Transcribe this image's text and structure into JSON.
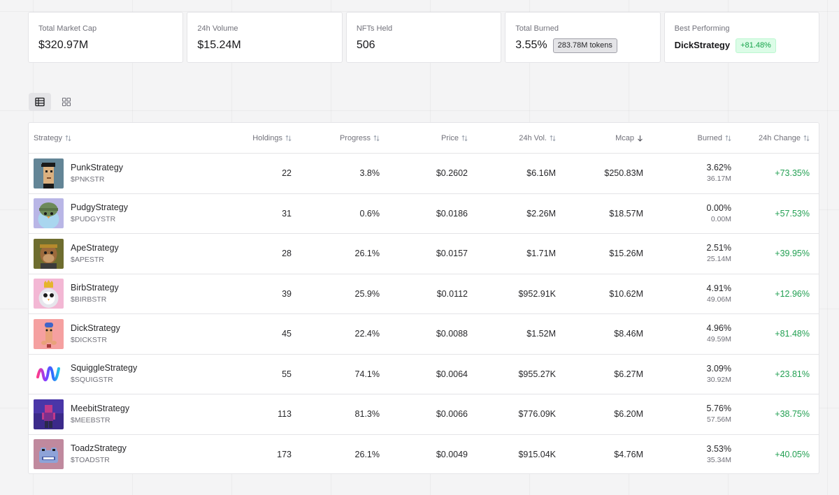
{
  "stats": [
    {
      "label": "Total Market Cap",
      "value": "$320.97M"
    },
    {
      "label": "24h Volume",
      "value": "$15.24M"
    },
    {
      "label": "NFTs Held",
      "value": "506"
    },
    {
      "label": "Total Burned",
      "value": "3.55%",
      "badge": "283.78M tokens"
    },
    {
      "label": "Best Performing",
      "value": "DickStrategy",
      "badge": "+81.48%"
    }
  ],
  "view_toggle": {
    "active": "table",
    "options": [
      "table-view",
      "grid-view"
    ]
  },
  "columns": [
    {
      "key": "strategy",
      "label": "Strategy",
      "sort": "both"
    },
    {
      "key": "holdings",
      "label": "Holdings",
      "sort": "both"
    },
    {
      "key": "progress",
      "label": "Progress",
      "sort": "both"
    },
    {
      "key": "price",
      "label": "Price",
      "sort": "both"
    },
    {
      "key": "vol",
      "label": "24h Vol.",
      "sort": "both"
    },
    {
      "key": "mcap",
      "label": "Mcap",
      "sort": "desc"
    },
    {
      "key": "burned",
      "label": "Burned",
      "sort": "both"
    },
    {
      "key": "change",
      "label": "24h Change",
      "sort": "both"
    }
  ],
  "rows": [
    {
      "name": "PunkStrategy",
      "ticker": "$PNKSTR",
      "holdings": "22",
      "progress": "3.8%",
      "price": "$0.2602",
      "vol": "$6.16M",
      "mcap": "$250.83M",
      "burned_pct": "3.62%",
      "burned_amt": "36.17M",
      "change": "+73.35%",
      "avatar": "punk"
    },
    {
      "name": "PudgyStrategy",
      "ticker": "$PUDGYSTR",
      "holdings": "31",
      "progress": "0.6%",
      "price": "$0.0186",
      "vol": "$2.26M",
      "mcap": "$18.57M",
      "burned_pct": "0.00%",
      "burned_amt": "0.00M",
      "change": "+57.53%",
      "avatar": "pudgy"
    },
    {
      "name": "ApeStrategy",
      "ticker": "$APESTR",
      "holdings": "28",
      "progress": "26.1%",
      "price": "$0.0157",
      "vol": "$1.71M",
      "mcap": "$15.26M",
      "burned_pct": "2.51%",
      "burned_amt": "25.14M",
      "change": "+39.95%",
      "avatar": "ape"
    },
    {
      "name": "BirbStrategy",
      "ticker": "$BIRBSTR",
      "holdings": "39",
      "progress": "25.9%",
      "price": "$0.0112",
      "vol": "$952.91K",
      "mcap": "$10.62M",
      "burned_pct": "4.91%",
      "burned_amt": "49.06M",
      "change": "+12.96%",
      "avatar": "birb"
    },
    {
      "name": "DickStrategy",
      "ticker": "$DICKSTR",
      "holdings": "45",
      "progress": "22.4%",
      "price": "$0.0088",
      "vol": "$1.52M",
      "mcap": "$8.46M",
      "burned_pct": "4.96%",
      "burned_amt": "49.59M",
      "change": "+81.48%",
      "avatar": "dick"
    },
    {
      "name": "SquiggleStrategy",
      "ticker": "$SQUIGSTR",
      "holdings": "55",
      "progress": "74.1%",
      "price": "$0.0064",
      "vol": "$955.27K",
      "mcap": "$6.27M",
      "burned_pct": "3.09%",
      "burned_amt": "30.92M",
      "change": "+23.81%",
      "avatar": "squiggle"
    },
    {
      "name": "MeebitStrategy",
      "ticker": "$MEEBSTR",
      "holdings": "113",
      "progress": "81.3%",
      "price": "$0.0066",
      "vol": "$776.09K",
      "mcap": "$6.20M",
      "burned_pct": "5.76%",
      "burned_amt": "57.56M",
      "change": "+38.75%",
      "avatar": "meebit"
    },
    {
      "name": "ToadzStrategy",
      "ticker": "$TOADSTR",
      "holdings": "173",
      "progress": "26.1%",
      "price": "$0.0049",
      "vol": "$915.04K",
      "mcap": "$4.76M",
      "burned_pct": "3.53%",
      "burned_amt": "35.34M",
      "change": "+40.05%",
      "avatar": "toadz"
    }
  ],
  "colors": {
    "positive": "#22a052",
    "positive_bg": "#dcfce7",
    "border": "#e4e4e7"
  }
}
